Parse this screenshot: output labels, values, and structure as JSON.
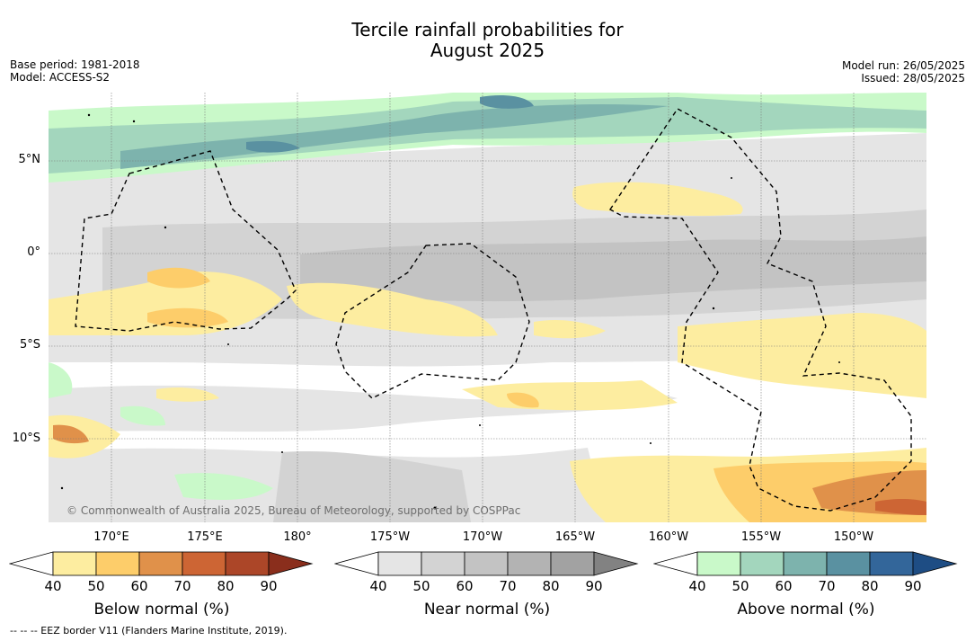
{
  "title": {
    "line1": "Tercile rainfall probabilities for",
    "line2": "August 2025"
  },
  "meta_left": {
    "base_period": "Base period: 1981-2018",
    "model": "Model: ACCESS-S2"
  },
  "meta_right": {
    "model_run": "Model run: 26/05/2025",
    "issued": "Issued: 28/05/2025"
  },
  "map": {
    "lat_labels": [
      "5°N",
      "0°",
      "5°S",
      "10°S"
    ],
    "lon_labels": [
      "170°E",
      "175°E",
      "180°",
      "175°W",
      "170°W",
      "165°W",
      "160°W",
      "155°W",
      "150°W"
    ],
    "copyright": "© Commonwealth of Australia 2025, Bureau of Meteorology, supported by COSPPac"
  },
  "colorbars": [
    {
      "name": "below",
      "title": "Below normal (%)",
      "ticks": [
        "40",
        "50",
        "60",
        "70",
        "80",
        "90"
      ],
      "colors": [
        "#ffffff",
        "#fdeda0",
        "#fdcd6a",
        "#e0914a",
        "#cd6534",
        "#ac4628",
        "#8a2e1c"
      ]
    },
    {
      "name": "near",
      "title": "Near normal (%)",
      "ticks": [
        "40",
        "50",
        "60",
        "70",
        "80",
        "90"
      ],
      "colors": [
        "#ffffff",
        "#e5e5e5",
        "#d3d3d3",
        "#c3c3c3",
        "#b3b3b3",
        "#a2a2a2",
        "#828282"
      ]
    },
    {
      "name": "above",
      "title": "Above normal (%)",
      "ticks": [
        "40",
        "50",
        "60",
        "70",
        "80",
        "90"
      ],
      "colors": [
        "#ffffff",
        "#c9f9c9",
        "#a3d6bd",
        "#7db3ad",
        "#5a91a1",
        "#33669a",
        "#1e4d84"
      ]
    }
  ],
  "footnote": "--  --  -- EEZ border V11 (Flanders Marine Institute, 2019)."
}
